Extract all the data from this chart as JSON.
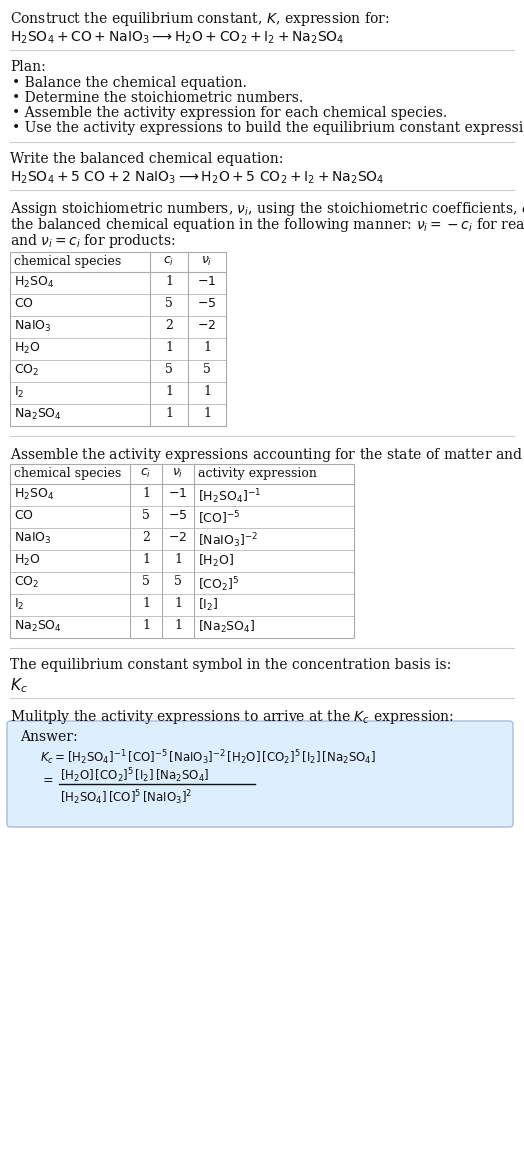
{
  "title_line1": "Construct the equilibrium constant, $K$, expression for:",
  "title_line2": "$\\mathrm{H_2SO_4 + CO + NaIO_3 \\longrightarrow H_2O + CO_2 + I_2 + Na_2SO_4}$",
  "plan_header": "Plan:",
  "plan_items": [
    "• Balance the chemical equation.",
    "• Determine the stoichiometric numbers.",
    "• Assemble the activity expression for each chemical species.",
    "• Use the activity expressions to build the equilibrium constant expression."
  ],
  "balanced_header": "Write the balanced chemical equation:",
  "balanced_eq": "$\\mathrm{H_2SO_4 + 5\\ CO + 2\\ NaIO_3 \\longrightarrow H_2O + 5\\ CO_2 + I_2 + Na_2SO_4}$",
  "stoich_header_parts": [
    "Assign stoichiometric numbers, $\\nu_i$, using the stoichiometric coefficients, $c_i$, from",
    "the balanced chemical equation in the following manner: $\\nu_i = -c_i$ for reactants",
    "and $\\nu_i = c_i$ for products:"
  ],
  "table1_headers": [
    "chemical species",
    "$c_i$",
    "$\\nu_i$"
  ],
  "table1_rows": [
    [
      "$\\mathrm{H_2SO_4}$",
      "1",
      "$-1$"
    ],
    [
      "$\\mathrm{CO}$",
      "5",
      "$-5$"
    ],
    [
      "$\\mathrm{NaIO_3}$",
      "2",
      "$-2$"
    ],
    [
      "$\\mathrm{H_2O}$",
      "1",
      "1"
    ],
    [
      "$\\mathrm{CO_2}$",
      "5",
      "5"
    ],
    [
      "$\\mathrm{I_2}$",
      "1",
      "1"
    ],
    [
      "$\\mathrm{Na_2SO_4}$",
      "1",
      "1"
    ]
  ],
  "activity_header": "Assemble the activity expressions accounting for the state of matter and $\\nu_i$:",
  "table2_headers": [
    "chemical species",
    "$c_i$",
    "$\\nu_i$",
    "activity expression"
  ],
  "table2_rows": [
    [
      "$\\mathrm{H_2SO_4}$",
      "1",
      "$-1$",
      "$[\\mathrm{H_2SO_4}]^{-1}$"
    ],
    [
      "$\\mathrm{CO}$",
      "5",
      "$-5$",
      "$[\\mathrm{CO}]^{-5}$"
    ],
    [
      "$\\mathrm{NaIO_3}$",
      "2",
      "$-2$",
      "$[\\mathrm{NaIO_3}]^{-2}$"
    ],
    [
      "$\\mathrm{H_2O}$",
      "1",
      "1",
      "$[\\mathrm{H_2O}]$"
    ],
    [
      "$\\mathrm{CO_2}$",
      "5",
      "5",
      "$[\\mathrm{CO_2}]^5$"
    ],
    [
      "$\\mathrm{I_2}$",
      "1",
      "1",
      "$[\\mathrm{I_2}]$"
    ],
    [
      "$\\mathrm{Na_2SO_4}$",
      "1",
      "1",
      "$[\\mathrm{Na_2SO_4}]$"
    ]
  ],
  "Kc_header": "The equilibrium constant symbol in the concentration basis is:",
  "Kc_symbol": "$K_c$",
  "multiply_header": "Mulitply the activity expressions to arrive at the $K_c$ expression:",
  "answer_label": "Answer:",
  "answer_line1": "$K_c = [\\mathrm{H_2SO_4}]^{-1}\\,[\\mathrm{CO}]^{-5}\\,[\\mathrm{NaIO_3}]^{-2}\\,[\\mathrm{H_2O}]\\,[\\mathrm{CO_2}]^5\\,[\\mathrm{I_2}]\\,[\\mathrm{Na_2SO_4}]$",
  "answer_eq_lhs": "$= $",
  "answer_line2_num": "$[\\mathrm{H_2O}]\\,[\\mathrm{CO_2}]^5\\,[\\mathrm{I_2}]\\,[\\mathrm{Na_2SO_4}]$",
  "answer_line2_den": "$[\\mathrm{H_2SO_4}]\\,[\\mathrm{CO}]^5\\,[\\mathrm{NaIO_3}]^2$",
  "bg_color": "#ffffff",
  "sep_color": "#cccccc",
  "table_border_color": "#aaaaaa",
  "table_row_color": "#ffffff",
  "answer_box_bg": "#ddeeff",
  "answer_box_edge": "#aabbdd",
  "text_color": "#111111",
  "font_size": 10,
  "small_font": 9,
  "fig_width": 5.24,
  "fig_height": 11.57,
  "dpi": 100
}
